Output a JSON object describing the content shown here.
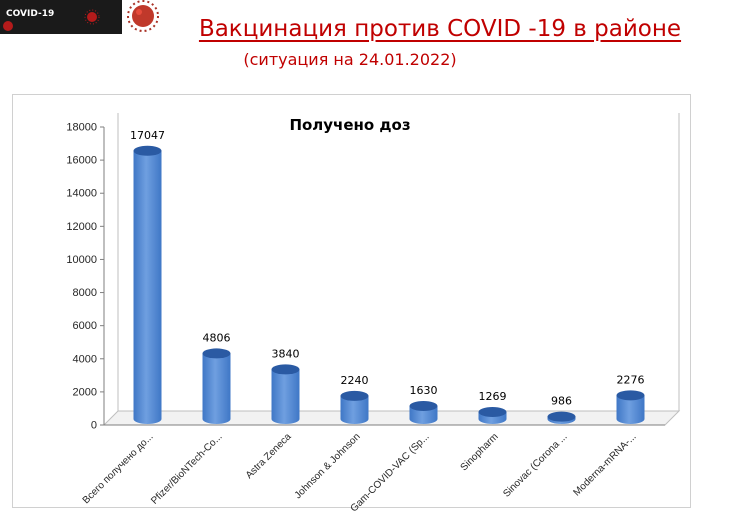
{
  "header": {
    "logo_text": "COVID-19",
    "title": "Вакцинация против COVID -19 в районе",
    "subtitle": "(ситуация на 24.01.2022)"
  },
  "colors": {
    "title": "#c00000",
    "bar_side": "#3f77c6",
    "bar_light": "#6f9fe0",
    "bar_top": "#2a5aa3"
  },
  "chart_data": {
    "type": "bar",
    "title": "Получено доз",
    "categories": [
      "Всего получено до...",
      "Pfizer/BioNTech-Co...",
      "Astra Zeneca",
      "Johnson & Johnson",
      "Gam-COVID-VAC (Sp...",
      "Sinopharm",
      "Sinovac (Corona ...",
      "Moderna-mRNA-..."
    ],
    "values": [
      17047,
      4806,
      3840,
      2240,
      1630,
      1269,
      986,
      2276
    ],
    "ylim": [
      0,
      18000
    ],
    "yticks": [
      0,
      2000,
      4000,
      6000,
      8000,
      10000,
      12000,
      14000,
      16000,
      18000
    ],
    "data_labels": true,
    "gridlines": false,
    "legend": "none"
  }
}
